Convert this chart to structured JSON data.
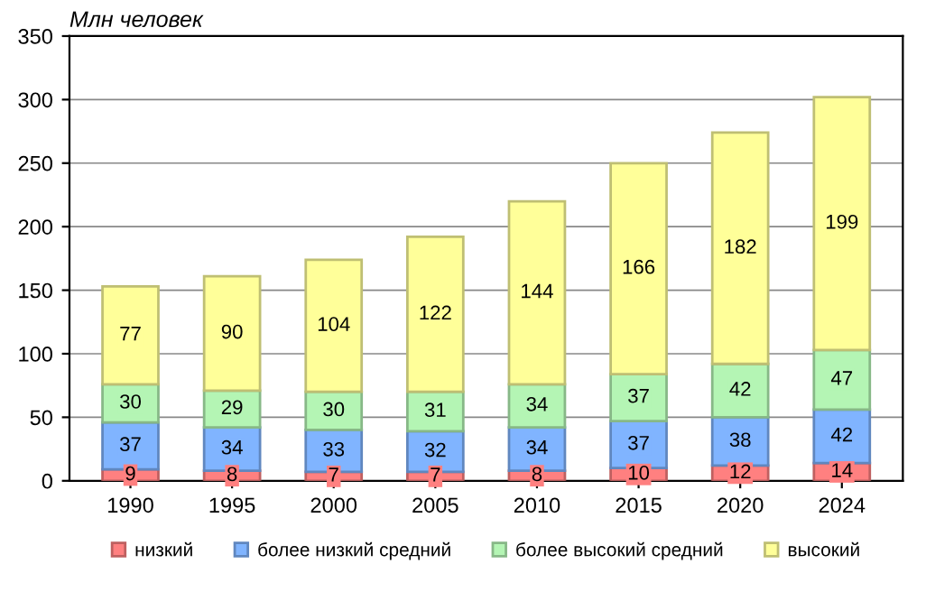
{
  "chart_data": {
    "type": "bar",
    "stacked": true,
    "title": "Млн человек",
    "categories": [
      "1990",
      "1995",
      "2000",
      "2005",
      "2010",
      "2015",
      "2020",
      "2024"
    ],
    "series": [
      {
        "name": "низкий",
        "color": "#ff8080",
        "values": [
          9,
          8,
          7,
          7,
          8,
          10,
          12,
          14
        ]
      },
      {
        "name": "более низкий средний",
        "color": "#80b4ff",
        "values": [
          37,
          34,
          33,
          32,
          34,
          37,
          38,
          42
        ]
      },
      {
        "name": "более высокий средний",
        "color": "#b4f5b4",
        "values": [
          30,
          29,
          30,
          31,
          34,
          37,
          42,
          47
        ]
      },
      {
        "name": "высокий",
        "color": "#ffff99",
        "values": [
          77,
          90,
          104,
          122,
          144,
          166,
          182,
          199
        ]
      }
    ],
    "ylim": [
      0,
      350
    ],
    "yticks": [
      0,
      50,
      100,
      150,
      200,
      250,
      300,
      350
    ],
    "grid": "y",
    "legend": "bottom",
    "data_labels": true
  }
}
